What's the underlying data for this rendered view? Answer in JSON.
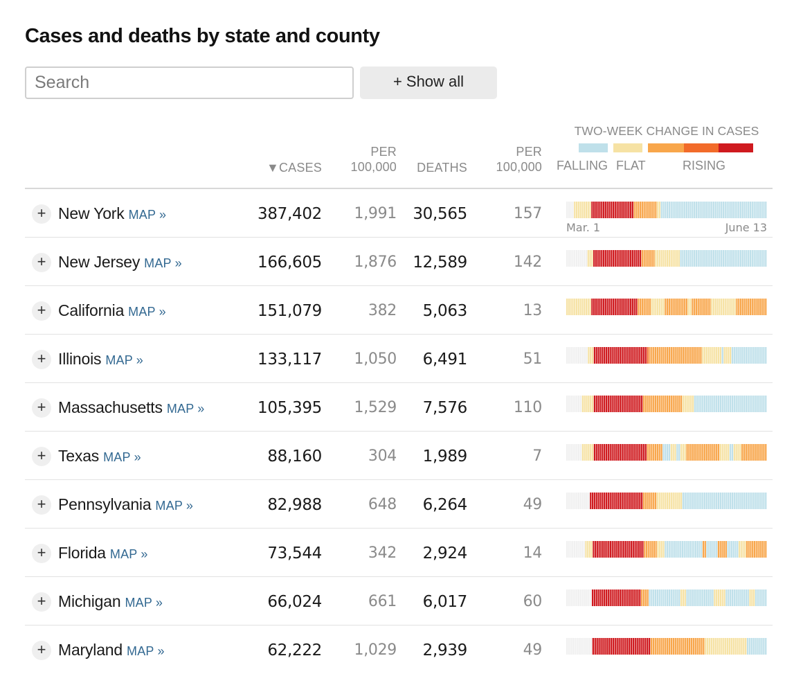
{
  "title": "Cases and deaths by state and county",
  "search": {
    "placeholder": "Search",
    "value": ""
  },
  "show_all_label": "+ Show all",
  "columns": {
    "cases": "▼CASES",
    "cases_per": [
      "PER",
      "100,000"
    ],
    "deaths": "DEATHS",
    "deaths_per": [
      "PER",
      "100,000"
    ]
  },
  "legend": {
    "title": "TWO-WEEK CHANGE IN CASES",
    "falling": "FALLING",
    "flat": "FLAT",
    "rising": "RISING",
    "colors": {
      "none": "#f0f0f0",
      "falling": "#bfe0ea",
      "flat": "#f6e2a4",
      "rising1": "#f8a64b",
      "rising2": "#f26b2a",
      "rising3": "#cf1a1f"
    }
  },
  "axis": {
    "start": "Mar. 1",
    "end": "June 13"
  },
  "expand_symbol": "+",
  "map_label": "MAP »",
  "rows": [
    {
      "state": "New York",
      "cases": "387,402",
      "cases_per": "1,991",
      "deaths": "30,565",
      "deaths_per": "157",
      "trend": [
        [
          "none",
          4
        ],
        [
          "flat",
          9
        ],
        [
          "rising3",
          22
        ],
        [
          "rising1",
          12
        ],
        [
          "flat",
          2
        ],
        [
          "falling",
          55
        ]
      ]
    },
    {
      "state": "New Jersey",
      "cases": "166,605",
      "cases_per": "1,876",
      "deaths": "12,589",
      "deaths_per": "142",
      "trend": [
        [
          "none",
          11
        ],
        [
          "flat",
          3
        ],
        [
          "rising3",
          25
        ],
        [
          "rising1",
          7
        ],
        [
          "flat",
          13
        ],
        [
          "falling",
          45
        ]
      ]
    },
    {
      "state": "California",
      "cases": "151,079",
      "cases_per": "382",
      "deaths": "5,063",
      "deaths_per": "13",
      "trend": [
        [
          "flat",
          13
        ],
        [
          "rising3",
          24
        ],
        [
          "rising1",
          7
        ],
        [
          "flat",
          7
        ],
        [
          "rising1",
          12
        ],
        [
          "flat",
          2
        ],
        [
          "rising1",
          10
        ],
        [
          "flat",
          13
        ],
        [
          "rising1",
          16
        ]
      ]
    },
    {
      "state": "Illinois",
      "cases": "133,117",
      "cases_per": "1,050",
      "deaths": "6,491",
      "deaths_per": "51",
      "trend": [
        [
          "none",
          11
        ],
        [
          "flat",
          3
        ],
        [
          "rising3",
          27
        ],
        [
          "rising2",
          1
        ],
        [
          "rising1",
          27
        ],
        [
          "flat",
          10
        ],
        [
          "falling",
          1
        ],
        [
          "flat",
          4
        ],
        [
          "falling",
          18
        ]
      ]
    },
    {
      "state": "Massachusetts",
      "cases": "105,395",
      "cases_per": "1,529",
      "deaths": "7,576",
      "deaths_per": "110",
      "trend": [
        [
          "none",
          8
        ],
        [
          "flat",
          6
        ],
        [
          "rising3",
          25
        ],
        [
          "rising1",
          20
        ],
        [
          "flat",
          6
        ],
        [
          "falling",
          37
        ]
      ]
    },
    {
      "state": "Texas",
      "cases": "88,160",
      "cases_per": "304",
      "deaths": "1,989",
      "deaths_per": "7",
      "trend": [
        [
          "none",
          8
        ],
        [
          "flat",
          6
        ],
        [
          "rising3",
          27
        ],
        [
          "rising1",
          8
        ],
        [
          "falling",
          4
        ],
        [
          "flat",
          3
        ],
        [
          "falling",
          2
        ],
        [
          "flat",
          3
        ],
        [
          "rising1",
          17
        ],
        [
          "flat",
          5
        ],
        [
          "falling",
          2
        ],
        [
          "flat",
          4
        ],
        [
          "rising1",
          13
        ]
      ]
    },
    {
      "state": "Pennsylvania",
      "cases": "82,988",
      "cases_per": "648",
      "deaths": "6,264",
      "deaths_per": "49",
      "trend": [
        [
          "none",
          12
        ],
        [
          "rising3",
          27
        ],
        [
          "rising1",
          7
        ],
        [
          "flat",
          13
        ],
        [
          "falling",
          43
        ]
      ]
    },
    {
      "state": "Florida",
      "cases": "73,544",
      "cases_per": "342",
      "deaths": "2,924",
      "deaths_per": "14",
      "trend": [
        [
          "none",
          10
        ],
        [
          "flat",
          4
        ],
        [
          "rising3",
          27
        ],
        [
          "rising1",
          7
        ],
        [
          "flat",
          4
        ],
        [
          "falling",
          20
        ],
        [
          "rising1",
          2
        ],
        [
          "falling",
          6
        ],
        [
          "rising1",
          5
        ],
        [
          "falling",
          6
        ],
        [
          "flat",
          4
        ],
        [
          "rising1",
          11
        ]
      ]
    },
    {
      "state": "Michigan",
      "cases": "66,024",
      "cases_per": "661",
      "deaths": "6,017",
      "deaths_per": "60",
      "trend": [
        [
          "none",
          13
        ],
        [
          "rising3",
          25
        ],
        [
          "rising1",
          4
        ],
        [
          "falling",
          16
        ],
        [
          "flat",
          3
        ],
        [
          "falling",
          14
        ],
        [
          "flat",
          6
        ],
        [
          "falling",
          12
        ],
        [
          "flat",
          3
        ],
        [
          "falling",
          6
        ]
      ]
    },
    {
      "state": "Maryland",
      "cases": "62,222",
      "cases_per": "1,029",
      "deaths": "2,939",
      "deaths_per": "49",
      "trend": [
        [
          "none",
          13
        ],
        [
          "rising3",
          29
        ],
        [
          "rising1",
          27
        ],
        [
          "flat",
          21
        ],
        [
          "falling",
          10
        ]
      ]
    }
  ]
}
